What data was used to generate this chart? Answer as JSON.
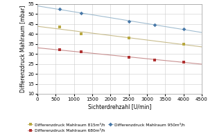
{
  "title": "",
  "xlabel": "Sichterdrehzahl [U/min]",
  "ylabel": "Differenzdruck Mahlraum [mbar]",
  "xlim": [
    0,
    4500
  ],
  "ylim": [
    10,
    55
  ],
  "xticks": [
    0,
    500,
    1000,
    1500,
    2000,
    2500,
    3000,
    3500,
    4000,
    4500
  ],
  "yticks": [
    10,
    15,
    20,
    25,
    30,
    35,
    40,
    45,
    50,
    55
  ],
  "series": [
    {
      "label": "Differenzdruck Mahlraum 815m³/h",
      "line_color": "#c8bc8c",
      "marker": "s",
      "marker_color": "#b8a840",
      "x": [
        600,
        1200,
        2500,
        4000
      ],
      "y": [
        43.5,
        40.0,
        38.0,
        35.0
      ]
    },
    {
      "label": "Differenzdruck Mahlraum 950m³/h",
      "line_color": "#a0bcd0",
      "marker": "D",
      "marker_color": "#4878a8",
      "x": [
        600,
        1200,
        2500,
        3200,
        4000
      ],
      "y": [
        52.5,
        50.5,
        46.5,
        44.5,
        42.5
      ]
    },
    {
      "label": "Differenzdruck Mahlraum 680m³/h",
      "line_color": "#c89090",
      "marker": "s",
      "marker_color": "#b03030",
      "x": [
        600,
        1200,
        2500,
        3200,
        4000
      ],
      "y": [
        32.0,
        31.0,
        28.5,
        27.0,
        26.0
      ]
    }
  ],
  "legend_order": [
    0,
    2,
    1
  ],
  "background_color": "#ffffff",
  "grid_color": "#cccccc",
  "tick_fontsize": 5,
  "label_fontsize": 5.5,
  "legend_fontsize": 4.2
}
